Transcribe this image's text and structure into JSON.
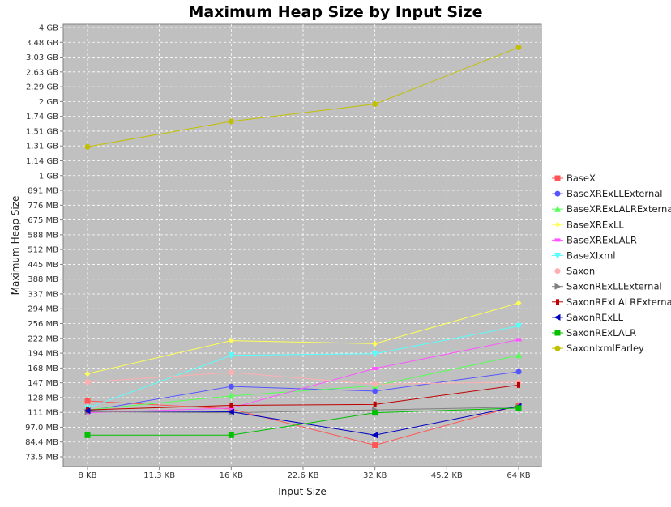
{
  "chart_data": {
    "type": "line",
    "title": "Maximum Heap Size by Input Size",
    "xlabel": "Input Size",
    "ylabel": "Maximum Heap Size",
    "x_scale": "log2",
    "y_scale": "log2",
    "x_ticks": [
      "8 KB",
      "11.3 KB",
      "16 KB",
      "22.6 KB",
      "32 KB",
      "45.2 KB",
      "64 KB"
    ],
    "y_ticks": [
      "4 GB",
      "3.48 GB",
      "3.03 GB",
      "2.63 GB",
      "2.29 GB",
      "2 GB",
      "1.74 GB",
      "1.51 GB",
      "1.31 GB",
      "1.14 GB",
      "1 GB",
      "891 MB",
      "776 MB",
      "675 MB",
      "588 MB",
      "512 MB",
      "445 MB",
      "388 MB",
      "337 MB",
      "294 MB",
      "256 MB",
      "222 MB",
      "194 MB",
      "168 MB",
      "147 MB",
      "128 MB",
      "111 MB",
      "97.0 MB",
      "84.4 MB",
      "73.5 MB"
    ],
    "x": [
      8,
      16,
      32,
      64
    ],
    "x_unit": "KB",
    "y_unit": "MB",
    "grid": true,
    "legend_position": "right",
    "series": [
      {
        "name": "BaseX",
        "color": "#ff5555",
        "marker": "square",
        "values": [
          124,
          115,
          82,
          119
        ]
      },
      {
        "name": "BaseXRExLLExternal",
        "color": "#5555ff",
        "marker": "circle",
        "values": [
          113,
          142,
          136,
          163
        ]
      },
      {
        "name": "BaseXRExLALRExternal",
        "color": "#55ff55",
        "marker": "triangle-up",
        "values": [
          114,
          130,
          143,
          190
        ]
      },
      {
        "name": "BaseXRExLL",
        "color": "#ffff55",
        "marker": "diamond",
        "values": [
          160,
          218,
          212,
          310
        ]
      },
      {
        "name": "BaseXRExLALR",
        "color": "#ff55ff",
        "marker": "rect-h",
        "values": [
          111,
          116,
          168,
          220
        ]
      },
      {
        "name": "BaseXIxml",
        "color": "#55ffff",
        "marker": "triangle-down",
        "values": [
          116,
          190,
          193,
          250
        ]
      },
      {
        "name": "Saxon",
        "color": "#ffafaf",
        "marker": "circle",
        "values": [
          148,
          162,
          145,
          148
        ]
      },
      {
        "name": "SaxonRExLLExternal",
        "color": "#808080",
        "marker": "triangle-right",
        "values": [
          112,
          111,
          114,
          117
        ]
      },
      {
        "name": "SaxonRExLALRExternal",
        "color": "#c00000",
        "marker": "rect-v",
        "values": [
          114,
          119,
          120,
          144
        ]
      },
      {
        "name": "SaxonRExLL",
        "color": "#0000c0",
        "marker": "triangle-left",
        "values": [
          113,
          112,
          90,
          118
        ]
      },
      {
        "name": "SaxonRExLALR",
        "color": "#00c000",
        "marker": "square",
        "values": [
          90,
          90,
          111,
          116
        ]
      },
      {
        "name": "SaxonIxmlEarley",
        "color": "#c0c000",
        "marker": "circle",
        "values": [
          1340,
          1700,
          2000,
          3400
        ]
      }
    ]
  }
}
